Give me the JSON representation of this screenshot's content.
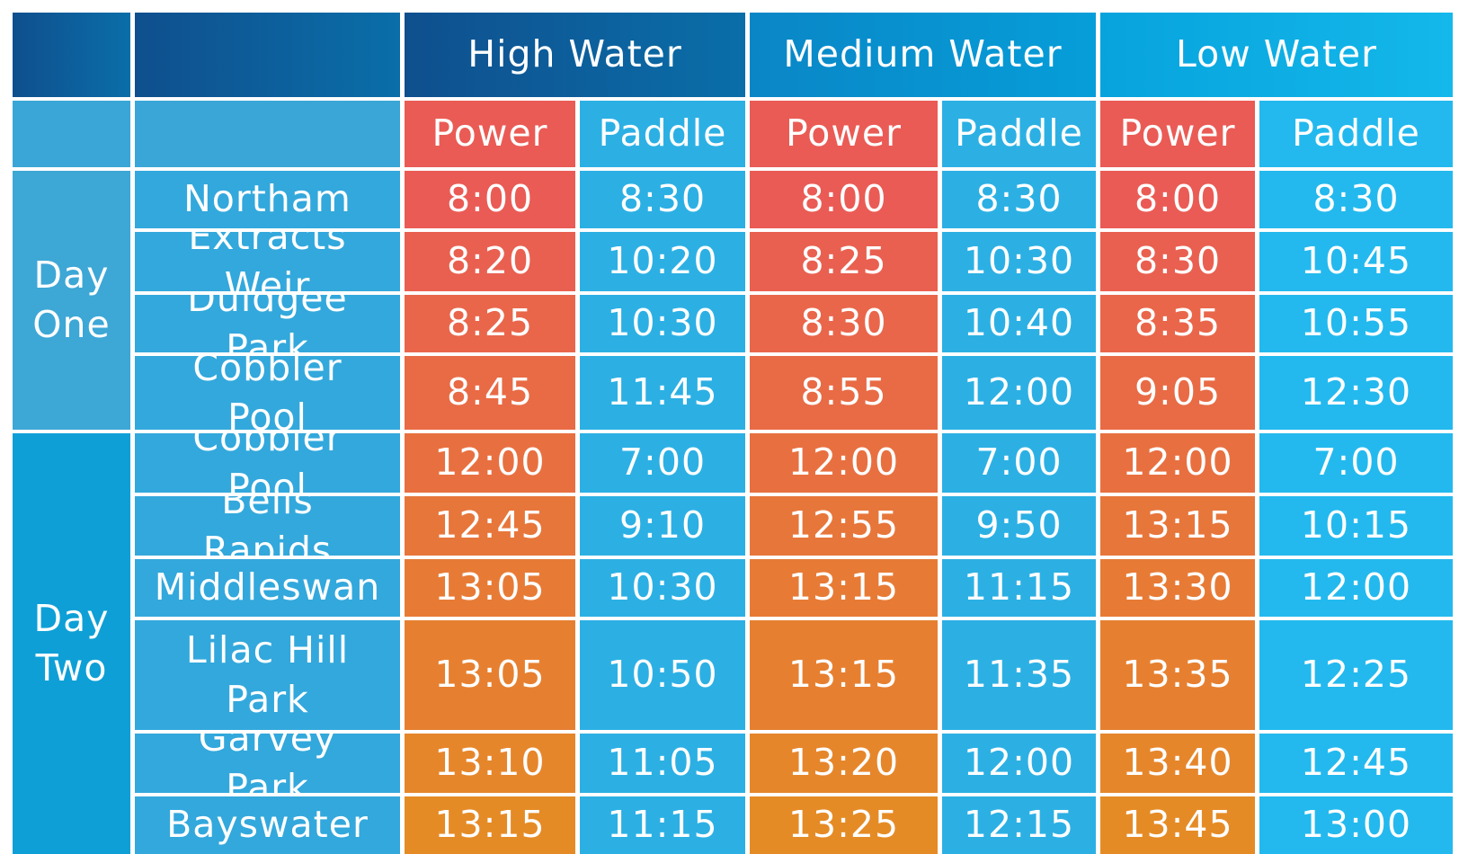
{
  "colors": {
    "power_top": "#ea5b55",
    "power_bottom": "#e58b26",
    "paddle": "#2cb0e4",
    "header_dark": "#0f4f8e",
    "header_light": "#14b8ea"
  },
  "chart_data": {
    "type": "table",
    "water_levels": [
      "High Water",
      "Medium Water",
      "Low Water"
    ],
    "sub_headers": [
      "Power",
      "Paddle"
    ],
    "days": [
      {
        "label": "Day One",
        "span": 4
      },
      {
        "label": "Day Two",
        "span": 6
      }
    ],
    "rows": [
      {
        "location": "Northam",
        "times": [
          "8:00",
          "8:30",
          "8:00",
          "8:30",
          "8:00",
          "8:30"
        ]
      },
      {
        "location": "Extracts Weir",
        "times": [
          "8:20",
          "10:20",
          "8:25",
          "10:30",
          "8:30",
          "10:45"
        ]
      },
      {
        "location": "Duidgee Park",
        "times": [
          "8:25",
          "10:30",
          "8:30",
          "10:40",
          "8:35",
          "10:55"
        ]
      },
      {
        "location": "Cobbler Pool",
        "times": [
          "8:45",
          "11:45",
          "8:55",
          "12:00",
          "9:05",
          "12:30"
        ]
      },
      {
        "location": "Cobbler Pool",
        "times": [
          "12:00",
          "7:00",
          "12:00",
          "7:00",
          "12:00",
          "7:00"
        ]
      },
      {
        "location": "Bells Rapids",
        "times": [
          "12:45",
          "9:10",
          "12:55",
          "9:50",
          "13:15",
          "10:15"
        ]
      },
      {
        "location": "Middleswan",
        "times": [
          "13:05",
          "10:30",
          "13:15",
          "11:15",
          "13:30",
          "12:00"
        ]
      },
      {
        "location": "Lilac Hill Park",
        "times": [
          "13:05",
          "10:50",
          "13:15",
          "11:35",
          "13:35",
          "12:25"
        ]
      },
      {
        "location": "Garvey Park",
        "times": [
          "13:10",
          "11:05",
          "13:20",
          "12:00",
          "13:40",
          "12:45"
        ]
      },
      {
        "location": "Bayswater",
        "times": [
          "13:15",
          "11:15",
          "13:25",
          "12:15",
          "13:45",
          "13:00"
        ]
      }
    ]
  }
}
